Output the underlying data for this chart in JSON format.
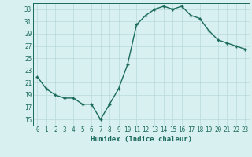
{
  "x": [
    0,
    1,
    2,
    3,
    4,
    5,
    6,
    7,
    8,
    9,
    10,
    11,
    12,
    13,
    14,
    15,
    16,
    17,
    18,
    19,
    20,
    21,
    22,
    23
  ],
  "y": [
    22,
    20,
    19,
    18.5,
    18.5,
    17.5,
    17.5,
    15,
    17.5,
    20,
    24,
    30.5,
    32,
    33,
    33.5,
    33,
    33.5,
    32,
    31.5,
    29.5,
    28,
    27.5,
    27,
    26.5
  ],
  "line_color": "#1a6b5a",
  "marker": "+",
  "bg_color": "#d9f0f0",
  "grid_color": "#b8dada",
  "xlabel": "Humidex (Indice chaleur)",
  "ylim": [
    14,
    34
  ],
  "xlim": [
    -0.5,
    23.5
  ],
  "yticks": [
    15,
    17,
    19,
    21,
    23,
    25,
    27,
    29,
    31,
    33
  ],
  "xticks": [
    0,
    1,
    2,
    3,
    4,
    5,
    6,
    7,
    8,
    9,
    10,
    11,
    12,
    13,
    14,
    15,
    16,
    17,
    18,
    19,
    20,
    21,
    22,
    23
  ],
  "xtick_labels": [
    "0",
    "1",
    "2",
    "3",
    "4",
    "5",
    "6",
    "7",
    "8",
    "9",
    "10",
    "11",
    "12",
    "13",
    "14",
    "15",
    "16",
    "17",
    "18",
    "19",
    "20",
    "21",
    "22",
    "23"
  ],
  "font_color": "#1a6b5a",
  "linewidth": 1.0,
  "markersize": 3.5,
  "xlabel_fontsize": 6.5,
  "tick_fontsize": 5.5
}
